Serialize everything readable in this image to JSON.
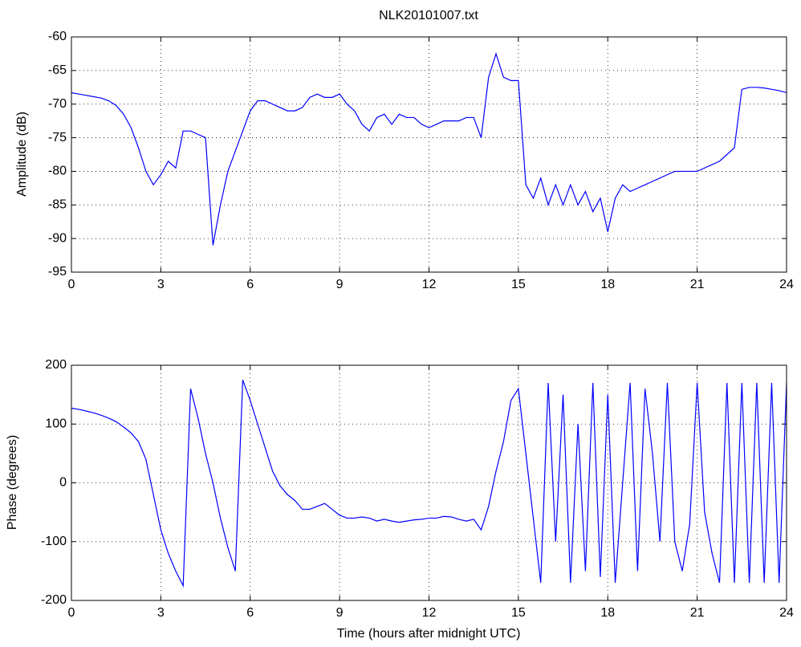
{
  "chart_data": [
    {
      "type": "line",
      "title": "NLK20101007.txt",
      "ylabel": "Amplitude (dB)",
      "x": [
        0,
        0.25,
        0.5,
        0.75,
        1,
        1.25,
        1.5,
        1.75,
        2,
        2.25,
        2.5,
        2.75,
        3,
        3.25,
        3.5,
        3.75,
        4,
        4.25,
        4.5,
        4.75,
        5,
        5.25,
        5.5,
        5.75,
        6,
        6.25,
        6.5,
        6.75,
        7,
        7.25,
        7.5,
        7.75,
        8,
        8.25,
        8.5,
        8.75,
        9,
        9.25,
        9.5,
        9.75,
        10,
        10.25,
        10.5,
        10.75,
        11,
        11.25,
        11.5,
        11.75,
        12,
        12.25,
        12.5,
        12.75,
        13,
        13.25,
        13.5,
        13.75,
        14,
        14.25,
        14.5,
        14.75,
        15,
        15.25,
        15.5,
        15.75,
        16,
        16.25,
        16.5,
        16.75,
        17,
        17.25,
        17.5,
        17.75,
        18,
        18.25,
        18.5,
        18.75,
        19,
        19.25,
        19.5,
        19.75,
        20,
        20.25,
        20.5,
        20.75,
        21,
        21.25,
        21.5,
        21.75,
        22,
        22.25,
        22.5,
        22.75,
        23,
        23.25,
        23.5,
        23.75,
        24
      ],
      "series": [
        {
          "color": "#0000ff",
          "values": [
            -68.3,
            -68.5,
            -68.7,
            -68.9,
            -69.1,
            -69.5,
            -70.2,
            -71.5,
            -73.5,
            -76.5,
            -80,
            -82,
            -80.5,
            -78.5,
            -79.5,
            -74,
            -74,
            -74.5,
            -75,
            -91,
            -85,
            -80,
            -77,
            -74,
            -71,
            -69.5,
            -69.5,
            -70,
            -70.5,
            -71,
            -71,
            -70.5,
            -69,
            -68.5,
            -69,
            -69,
            -68.5,
            -70,
            -71,
            -73,
            -74,
            -72,
            -71.5,
            -73,
            -71.5,
            -72,
            -72,
            -73,
            -73.5,
            -73,
            -72.5,
            -72.5,
            -72.5,
            -72,
            -72,
            -75,
            -66,
            -62.5,
            -66,
            -66.5,
            -66.5,
            -82,
            -84,
            -81,
            -85,
            -82,
            -85,
            -82,
            -85,
            -83,
            -86,
            -84,
            -89,
            -84,
            -82,
            -83,
            -82.5,
            -82,
            -81.5,
            -81,
            -80.5,
            -80,
            -80,
            -80,
            -80,
            -79.5,
            -79,
            -78.5,
            -77.5,
            -76.5,
            -67.8,
            -67.5,
            -67.5,
            -67.6,
            -67.8,
            -68,
            -68.3
          ]
        }
      ],
      "xlim": [
        0,
        24
      ],
      "xticks": [
        0,
        3,
        6,
        9,
        12,
        15,
        18,
        21,
        24
      ],
      "ylim": [
        -95,
        -60
      ],
      "yticks": [
        -95,
        -90,
        -85,
        -80,
        -75,
        -70,
        -65,
        -60
      ],
      "grid": true
    },
    {
      "type": "line",
      "xlabel": "Time (hours after midnight UTC)",
      "ylabel": "Phase (degrees)",
      "x": [
        0,
        0.25,
        0.5,
        0.75,
        1,
        1.25,
        1.5,
        1.75,
        2,
        2.25,
        2.5,
        2.75,
        3,
        3.25,
        3.5,
        3.75,
        4,
        4.25,
        4.5,
        4.75,
        5,
        5.25,
        5.5,
        5.75,
        6,
        6.25,
        6.5,
        6.75,
        7,
        7.25,
        7.5,
        7.75,
        8,
        8.25,
        8.5,
        8.75,
        9,
        9.25,
        9.5,
        9.75,
        10,
        10.25,
        10.5,
        10.75,
        11,
        11.25,
        11.5,
        11.75,
        12,
        12.25,
        12.5,
        12.75,
        13,
        13.25,
        13.5,
        13.75,
        14,
        14.25,
        14.5,
        14.75,
        15,
        15.25,
        15.5,
        15.75,
        16,
        16.25,
        16.5,
        16.75,
        17,
        17.25,
        17.5,
        17.75,
        18,
        18.25,
        18.5,
        18.75,
        19,
        19.25,
        19.5,
        19.75,
        20,
        20.25,
        20.5,
        20.75,
        21,
        21.25,
        21.5,
        21.75,
        22,
        22.25,
        22.5,
        22.75,
        23,
        23.25,
        23.5,
        23.75,
        24
      ],
      "series": [
        {
          "color": "#0000ff",
          "values": [
            127,
            125,
            122,
            119,
            115,
            110,
            104,
            95,
            85,
            70,
            40,
            -20,
            -80,
            -120,
            -150,
            -175,
            160,
            110,
            50,
            0,
            -60,
            -110,
            -150,
            175,
            140,
            100,
            60,
            20,
            -5,
            -20,
            -30,
            -45,
            -45,
            -40,
            -35,
            -45,
            -55,
            -60,
            -60,
            -58,
            -60,
            -65,
            -62,
            -65,
            -67,
            -65,
            -63,
            -62,
            -60,
            -60,
            -57,
            -58,
            -62,
            -65,
            -62,
            -80,
            -40,
            20,
            70,
            140,
            160,
            50,
            -60,
            -170,
            170,
            -100,
            150,
            -170,
            100,
            -150,
            170,
            -160,
            150,
            -170,
            0,
            170,
            -150,
            160,
            50,
            -100,
            170,
            -100,
            -150,
            -70,
            170,
            -50,
            -120,
            -170,
            170,
            -170,
            170,
            -170,
            170,
            -170,
            170,
            -170,
            170
          ]
        }
      ],
      "xlim": [
        0,
        24
      ],
      "xticks": [
        0,
        3,
        6,
        9,
        12,
        15,
        18,
        21,
        24
      ],
      "ylim": [
        -200,
        200
      ],
      "yticks": [
        -200,
        -100,
        0,
        100,
        200
      ],
      "grid": true
    }
  ]
}
